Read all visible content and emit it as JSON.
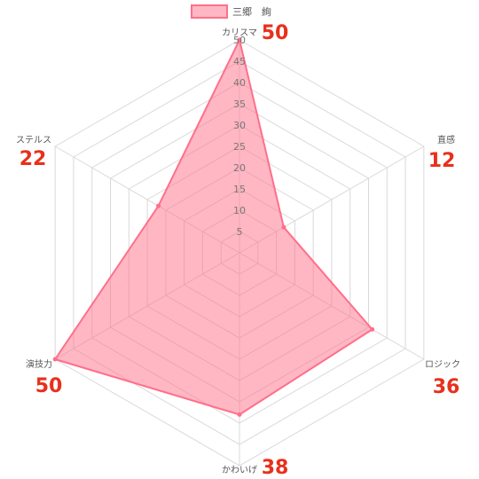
{
  "chart_data": {
    "type": "radar",
    "categories": [
      "カリスマ",
      "直感",
      "ロジック",
      "かわいげ",
      "演技力",
      "ステルス"
    ],
    "series": [
      {
        "name": "三郷　絢",
        "color": "#ff6f8a",
        "values": [
          50,
          12,
          36,
          38,
          50,
          22
        ]
      }
    ],
    "rlim": [
      0,
      50
    ],
    "rticks": [
      5,
      10,
      15,
      20,
      25,
      30,
      35,
      40,
      45,
      50
    ],
    "grid": true,
    "legend": "top"
  }
}
